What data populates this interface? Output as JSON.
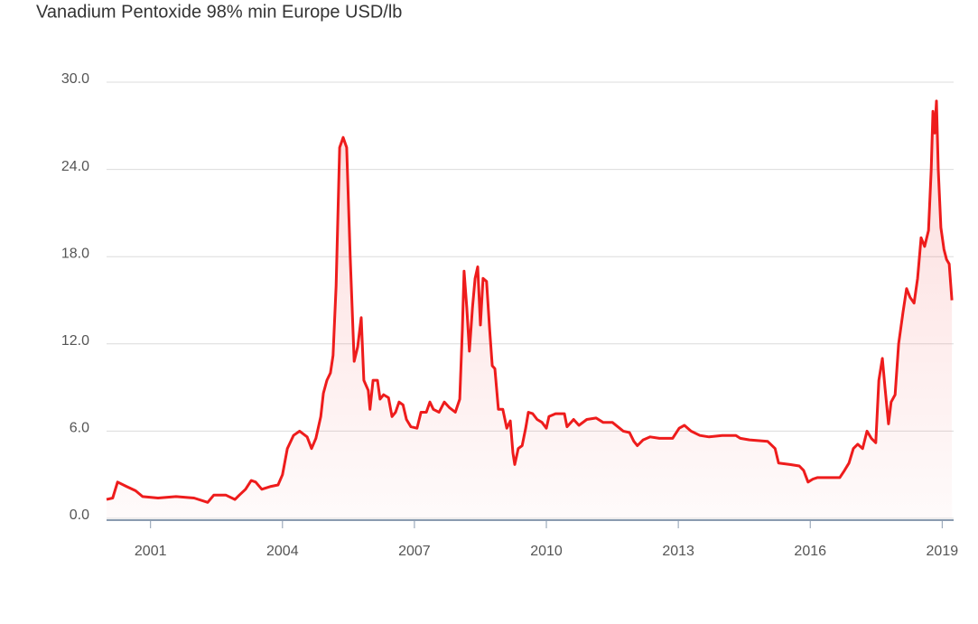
{
  "chart_data": {
    "type": "line",
    "title": "Vanadium Pentoxide 98% min Europe USD/lb",
    "color": "#ee1c1c",
    "grid": true,
    "xlim": [
      2000,
      2019.26
    ],
    "xticks": [
      2001,
      2004,
      2007,
      2010,
      2013,
      2016,
      2019
    ],
    "ylim": [
      0,
      30
    ],
    "yticks": [
      {
        "value": 0,
        "label": "0.0"
      },
      {
        "value": 6,
        "label": "6.0"
      },
      {
        "value": 12,
        "label": "12.0"
      },
      {
        "value": 18,
        "label": "18.0"
      },
      {
        "value": 24,
        "label": "24.0"
      },
      {
        "value": 30,
        "label": "30.0"
      }
    ],
    "x": [
      2000.0,
      2000.14,
      2000.25,
      2000.45,
      2000.66,
      2000.82,
      2001.17,
      2001.58,
      2001.99,
      2002.3,
      2002.44,
      2002.71,
      2002.92,
      2003.02,
      2003.16,
      2003.29,
      2003.39,
      2003.53,
      2003.74,
      2003.9,
      2004.0,
      2004.11,
      2004.25,
      2004.39,
      2004.56,
      2004.66,
      2004.76,
      2004.87,
      2004.93,
      2005.01,
      2005.09,
      2005.15,
      2005.22,
      2005.3,
      2005.38,
      2005.46,
      2005.54,
      2005.63,
      2005.71,
      2005.79,
      2005.85,
      2005.95,
      2005.99,
      2006.06,
      2006.16,
      2006.22,
      2006.3,
      2006.41,
      2006.49,
      2006.57,
      2006.65,
      2006.74,
      2006.82,
      2006.92,
      2007.06,
      2007.15,
      2007.27,
      2007.35,
      2007.43,
      2007.56,
      2007.68,
      2007.8,
      2007.93,
      2008.03,
      2008.09,
      2008.13,
      2008.19,
      2008.25,
      2008.32,
      2008.38,
      2008.44,
      2008.5,
      2008.56,
      2008.64,
      2008.71,
      2008.77,
      2008.83,
      2008.91,
      2009.01,
      2009.1,
      2009.18,
      2009.24,
      2009.28,
      2009.36,
      2009.45,
      2009.53,
      2009.59,
      2009.69,
      2009.79,
      2009.9,
      2010.0,
      2010.06,
      2010.21,
      2010.41,
      2010.47,
      2010.62,
      2010.74,
      2010.92,
      2011.13,
      2011.29,
      2011.5,
      2011.75,
      2011.89,
      2011.99,
      2012.07,
      2012.2,
      2012.36,
      2012.57,
      2012.87,
      2013.02,
      2013.14,
      2013.29,
      2013.49,
      2013.7,
      2014.0,
      2014.31,
      2014.41,
      2014.62,
      2015.03,
      2015.2,
      2015.28,
      2015.54,
      2015.75,
      2015.85,
      2015.95,
      2016.06,
      2016.16,
      2016.67,
      2016.78,
      2016.88,
      2016.98,
      2017.08,
      2017.19,
      2017.29,
      2017.39,
      2017.49,
      2017.56,
      2017.64,
      2017.7,
      2017.78,
      2017.84,
      2017.93,
      2018.01,
      2018.11,
      2018.19,
      2018.27,
      2018.36,
      2018.44,
      2018.52,
      2018.6,
      2018.69,
      2018.75,
      2018.79,
      2018.83,
      2018.87,
      2018.91,
      2018.97,
      2019.04,
      2019.1,
      2019.16,
      2019.22
    ],
    "values": [
      1.3,
      1.4,
      2.5,
      2.2,
      1.9,
      1.5,
      1.4,
      1.5,
      1.4,
      1.1,
      1.6,
      1.6,
      1.3,
      1.6,
      2.0,
      2.6,
      2.5,
      2.0,
      2.2,
      2.3,
      3.0,
      4.8,
      5.7,
      6.0,
      5.6,
      4.8,
      5.5,
      7.0,
      8.6,
      9.5,
      10.0,
      11.2,
      16,
      25.5,
      26.2,
      25.5,
      18,
      10.8,
      11.8,
      13.8,
      9.5,
      8.8,
      7.5,
      9.5,
      9.5,
      8.2,
      8.5,
      8.3,
      7.0,
      7.3,
      8.0,
      7.8,
      6.8,
      6.3,
      6.2,
      7.3,
      7.3,
      8.0,
      7.5,
      7.3,
      8.0,
      7.6,
      7.3,
      8.2,
      13,
      17.0,
      14.5,
      11.5,
      14.5,
      16.5,
      17.3,
      13.3,
      16.5,
      16.3,
      13,
      10.5,
      10.3,
      7.5,
      7.5,
      6.2,
      6.7,
      4.5,
      3.7,
      4.8,
      5.0,
      6.2,
      7.3,
      7.2,
      6.8,
      6.6,
      6.2,
      7.0,
      7.2,
      7.2,
      6.3,
      6.8,
      6.4,
      6.8,
      6.9,
      6.6,
      6.6,
      6.0,
      5.9,
      5.3,
      5.0,
      5.4,
      5.6,
      5.5,
      5.5,
      6.2,
      6.4,
      6.0,
      5.7,
      5.6,
      5.7,
      5.7,
      5.5,
      5.4,
      5.3,
      4.8,
      3.8,
      3.7,
      3.6,
      3.3,
      2.5,
      2.7,
      2.8,
      2.8,
      3.3,
      3.8,
      4.8,
      5.1,
      4.8,
      6.0,
      5.5,
      5.2,
      9.5,
      11.0,
      9.0,
      6.5,
      8.0,
      8.5,
      12.0,
      14.2,
      15.8,
      15.2,
      14.8,
      16.5,
      19.3,
      18.7,
      19.8,
      24,
      28,
      26.5,
      28.7,
      24,
      20,
      18.5,
      17.8,
      17.5,
      15.0
    ]
  }
}
